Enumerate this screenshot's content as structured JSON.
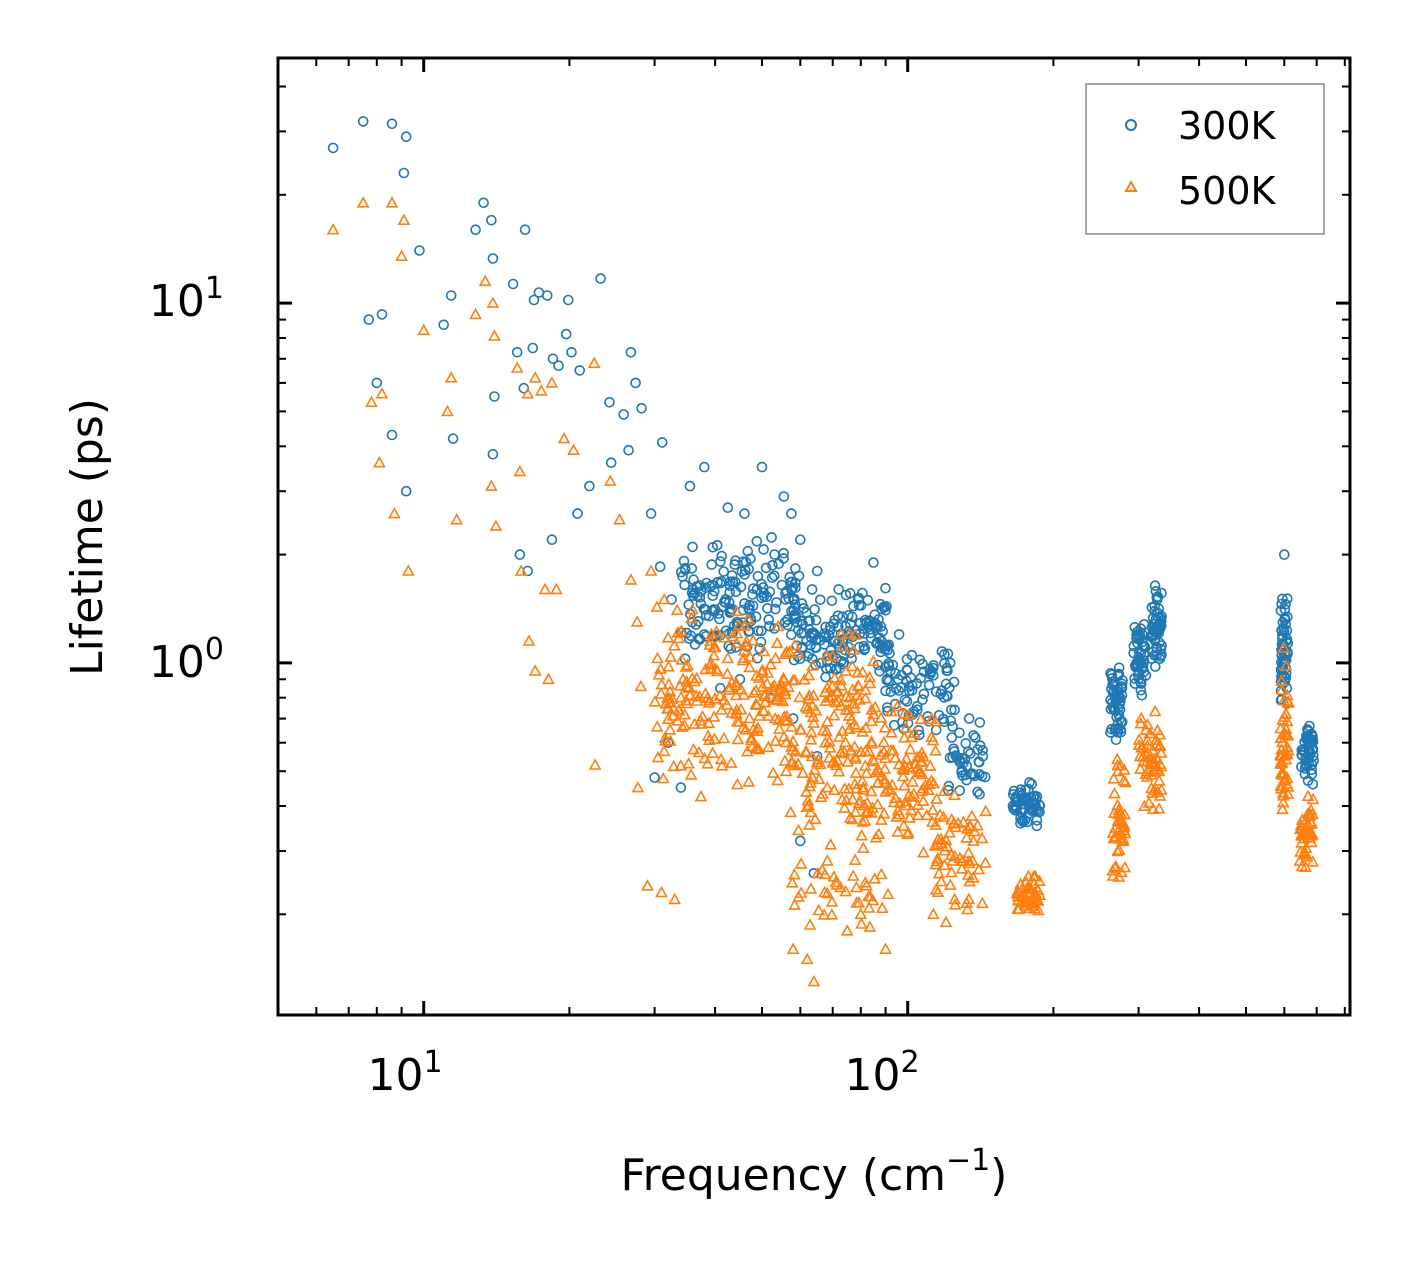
{
  "chart_data": {
    "type": "scatter",
    "title": "",
    "xlabel": "Frequency (cm",
    "xlabel_sup": "−1",
    "xlabel_close": ")",
    "ylabel": "Lifetime (ps)",
    "xscale": "log",
    "yscale": "log",
    "xlim": [
      5,
      820
    ],
    "ylim": [
      0.105,
      48
    ],
    "x_ticks": [
      {
        "value": 10,
        "base": "10",
        "exp": "1"
      },
      {
        "value": 100,
        "base": "10",
        "exp": "2"
      }
    ],
    "y_ticks": [
      {
        "value": 1,
        "base": "10",
        "exp": "0"
      },
      {
        "value": 10,
        "base": "10",
        "exp": "1"
      }
    ],
    "legend": {
      "position": "top-right"
    },
    "series": [
      {
        "name": "300K",
        "marker": "circle",
        "color": "#1f77b4",
        "points": [
          [
            6.5,
            27
          ],
          [
            7.5,
            32
          ],
          [
            8.6,
            31.5
          ],
          [
            9.2,
            29
          ],
          [
            9.1,
            23
          ],
          [
            9.8,
            14
          ],
          [
            7.7,
            9
          ],
          [
            8.2,
            9.3
          ],
          [
            8,
            6
          ],
          [
            8.6,
            4.3
          ],
          [
            9.2,
            3
          ],
          [
            11,
            8.7
          ],
          [
            11.4,
            10.5
          ],
          [
            11.5,
            4.2
          ],
          [
            12.8,
            16
          ],
          [
            13.3,
            19
          ],
          [
            13.8,
            17
          ],
          [
            13.9,
            13.3
          ],
          [
            14,
            5.5
          ],
          [
            13.9,
            3.8
          ],
          [
            15.3,
            11.3
          ],
          [
            15.6,
            7.3
          ],
          [
            16.1,
            5.8
          ],
          [
            15.8,
            2
          ],
          [
            16.2,
            16
          ],
          [
            16.8,
            7.5
          ],
          [
            16.9,
            10.2
          ],
          [
            17.3,
            10.7
          ],
          [
            18,
            10.5
          ],
          [
            19.9,
            10.2
          ],
          [
            18.5,
            7
          ],
          [
            19,
            6.7
          ],
          [
            19.7,
            8.2
          ],
          [
            20.2,
            7.3
          ],
          [
            21,
            6.5
          ],
          [
            23.2,
            11.7
          ],
          [
            16.4,
            1.8
          ],
          [
            18.4,
            2.2
          ],
          [
            20.8,
            2.6
          ],
          [
            22,
            3.1
          ],
          [
            24.4,
            3.6
          ],
          [
            26.5,
            3.9
          ],
          [
            24.2,
            5.3
          ],
          [
            26.8,
            7.3
          ],
          [
            27.4,
            6
          ],
          [
            25.9,
            4.9
          ],
          [
            28.2,
            5.1
          ],
          [
            31.1,
            4.1
          ],
          [
            29.5,
            2.6
          ],
          [
            30.8,
            1.85
          ],
          [
            32.5,
            1.5
          ],
          [
            35.5,
            3.1
          ],
          [
            38,
            3.5
          ],
          [
            42.5,
            2.7
          ],
          [
            46,
            2.6
          ],
          [
            50,
            3.5
          ],
          [
            55.5,
            2.9
          ],
          [
            57.5,
            2.6
          ],
          [
            60,
            2.2
          ],
          [
            65,
            1.8
          ],
          [
            72,
            1.6
          ],
          [
            79,
            1.5
          ],
          [
            85,
            1.9
          ],
          [
            90,
            1.4
          ],
          [
            96,
            1.2
          ],
          [
            102,
            1.05
          ],
          [
            111,
            0.96
          ],
          [
            117,
            0.82
          ],
          [
            125,
            0.74
          ],
          [
            134,
            0.7
          ],
          [
            138,
            0.62
          ],
          [
            143,
            0.55
          ],
          [
            38,
            1.2
          ],
          [
            41,
            0.85
          ],
          [
            45,
            0.9
          ],
          [
            52,
            0.8
          ],
          [
            58,
            0.7
          ],
          [
            65,
            0.55
          ],
          [
            32,
            0.6
          ],
          [
            34,
            0.45
          ],
          [
            60,
            0.32
          ],
          [
            64,
            0.26
          ],
          [
            30,
            0.48
          ],
          [
            36,
            1.6
          ]
        ],
        "clusters": [
          {
            "xmin": 34,
            "xmax": 60,
            "ymin": 1.0,
            "ymax": 2.3,
            "n": 170
          },
          {
            "xmin": 58,
            "xmax": 92,
            "ymin": 0.85,
            "ymax": 1.7,
            "n": 150
          },
          {
            "xmin": 90,
            "xmax": 125,
            "ymin": 0.6,
            "ymax": 1.1,
            "n": 80
          },
          {
            "xmin": 120,
            "xmax": 145,
            "ymin": 0.4,
            "ymax": 0.7,
            "n": 40
          },
          {
            "xmin": 165,
            "xmax": 188,
            "ymin": 0.35,
            "ymax": 0.47,
            "n": 60
          },
          {
            "xmin": 262,
            "xmax": 278,
            "ymin": 0.6,
            "ymax": 1.02,
            "n": 55
          },
          {
            "xmin": 293,
            "xmax": 312,
            "ymin": 0.75,
            "ymax": 1.3,
            "n": 50
          },
          {
            "xmin": 318,
            "xmax": 335,
            "ymin": 0.95,
            "ymax": 1.7,
            "n": 55
          },
          {
            "xmin": 590,
            "xmax": 610,
            "ymin": 0.7,
            "ymax": 1.7,
            "n": 55
          },
          {
            "xmin": 650,
            "xmax": 690,
            "ymin": 0.45,
            "ymax": 0.72,
            "n": 50
          }
        ],
        "outliers": [
          [
            600,
            2.0
          ]
        ]
      },
      {
        "name": "500K",
        "marker": "triangle",
        "color": "#ff7f0e",
        "points": [
          [
            6.5,
            16
          ],
          [
            7.5,
            19
          ],
          [
            8.6,
            19
          ],
          [
            9.1,
            17
          ],
          [
            9,
            13.5
          ],
          [
            10,
            8.4
          ],
          [
            7.8,
            5.3
          ],
          [
            8.2,
            5.6
          ],
          [
            8.1,
            3.6
          ],
          [
            8.7,
            2.6
          ],
          [
            9.3,
            1.8
          ],
          [
            11.2,
            5
          ],
          [
            11.4,
            6.2
          ],
          [
            11.7,
            2.5
          ],
          [
            12.8,
            9.3
          ],
          [
            13.4,
            11.5
          ],
          [
            13.9,
            10
          ],
          [
            14,
            8.1
          ],
          [
            13.8,
            3.1
          ],
          [
            14.1,
            2.4
          ],
          [
            15.6,
            6.6
          ],
          [
            15.8,
            3.4
          ],
          [
            16.4,
            5.6
          ],
          [
            15.9,
            1.8
          ],
          [
            17,
            6.2
          ],
          [
            17.5,
            5.7
          ],
          [
            18.4,
            6
          ],
          [
            19.5,
            4.2
          ],
          [
            20.4,
            3.9
          ],
          [
            22.5,
            6.8
          ],
          [
            16.5,
            1.15
          ],
          [
            17.8,
            1.6
          ],
          [
            18.8,
            1.6
          ],
          [
            17,
            0.95
          ],
          [
            18.1,
            0.9
          ],
          [
            22.6,
            0.52
          ],
          [
            24.3,
            3.2
          ],
          [
            25.4,
            2.5
          ],
          [
            26.8,
            1.7
          ],
          [
            27.6,
            1.3
          ],
          [
            28.1,
            0.86
          ],
          [
            27.7,
            0.45
          ],
          [
            29.5,
            1.8
          ],
          [
            31.4,
            1.5
          ],
          [
            33.4,
            1.4
          ],
          [
            31,
            0.23
          ],
          [
            33,
            0.22
          ],
          [
            29,
            0.24
          ],
          [
            58,
            0.16
          ],
          [
            62,
            0.15
          ],
          [
            64,
            0.13
          ],
          [
            75,
            0.18
          ],
          [
            80,
            0.2
          ],
          [
            90,
            0.16
          ],
          [
            113,
            0.2
          ],
          [
            120,
            0.19
          ],
          [
            125,
            0.22
          ]
        ],
        "clusters": [
          {
            "xmin": 30,
            "xmax": 56,
            "ymin": 0.4,
            "ymax": 1.55,
            "n": 200
          },
          {
            "xmin": 55,
            "xmax": 85,
            "ymin": 0.3,
            "ymax": 1.3,
            "n": 170
          },
          {
            "xmin": 80,
            "xmax": 115,
            "ymin": 0.28,
            "ymax": 0.8,
            "n": 110
          },
          {
            "xmin": 112,
            "xmax": 145,
            "ymin": 0.2,
            "ymax": 0.45,
            "n": 60
          },
          {
            "xmin": 55,
            "xmax": 95,
            "ymin": 0.18,
            "ymax": 0.3,
            "n": 40
          },
          {
            "xmin": 167,
            "xmax": 188,
            "ymin": 0.2,
            "ymax": 0.26,
            "n": 45
          },
          {
            "xmin": 265,
            "xmax": 282,
            "ymin": 0.22,
            "ymax": 0.58,
            "n": 45
          },
          {
            "xmin": 300,
            "xmax": 335,
            "ymin": 0.38,
            "ymax": 0.78,
            "n": 55
          },
          {
            "xmin": 588,
            "xmax": 612,
            "ymin": 0.36,
            "ymax": 0.9,
            "n": 50
          },
          {
            "xmin": 645,
            "xmax": 690,
            "ymin": 0.25,
            "ymax": 0.44,
            "n": 45
          }
        ],
        "outliers": [
          [
            598,
            1.1
          ],
          [
            605,
            0.98
          ]
        ]
      }
    ]
  }
}
